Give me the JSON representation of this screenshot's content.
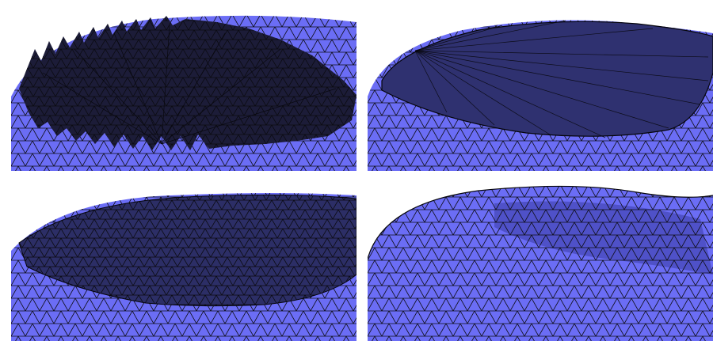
{
  "figure": {
    "panels": [
      {
        "id": "p1",
        "label": "",
        "description": ""
      },
      {
        "id": "p2",
        "label": "",
        "description": ""
      },
      {
        "id": "p3",
        "label": "",
        "description": ""
      },
      {
        "id": "p4",
        "label": "",
        "description": ""
      }
    ],
    "colors": {
      "light_mesh": "#6b6df5",
      "dark_mesh": "#2d2f6a",
      "edge": "#101018",
      "background": "#ffffff"
    }
  }
}
